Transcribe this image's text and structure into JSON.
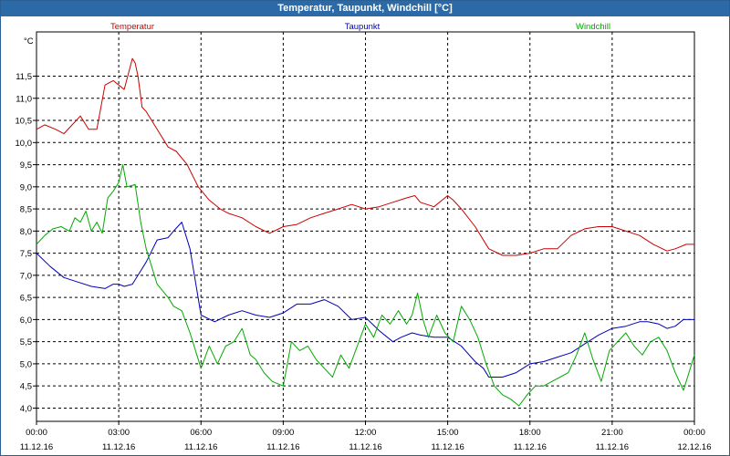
{
  "window": {
    "title": "Temperatur, Taupunkt, Windchill [°C]"
  },
  "chart_data": {
    "type": "line",
    "title": "Temperatur, Taupunkt, Windchill [°C]",
    "ylabel": "°C",
    "xlabel": "",
    "ylim": [
      3.7,
      12.5
    ],
    "xlim": [
      0,
      24
    ],
    "y_ticks": [
      4.0,
      4.5,
      5.0,
      5.5,
      6.0,
      6.5,
      7.0,
      7.5,
      8.0,
      8.5,
      9.0,
      9.5,
      10.0,
      10.5,
      11.0,
      11.5
    ],
    "y_tick_labels": [
      "4,0",
      "4,5",
      "5,0",
      "5,5",
      "6,0",
      "6,5",
      "7,0",
      "7,5",
      "8,0",
      "8,5",
      "9,0",
      "9,5",
      "10,0",
      "10,5",
      "11,0",
      "11,5"
    ],
    "x_ticks": [
      {
        "t": 0,
        "time": "00:00",
        "date": "11.12.16"
      },
      {
        "t": 3,
        "time": "03:00",
        "date": "11.12.16"
      },
      {
        "t": 6,
        "time": "06:00",
        "date": "11.12.16"
      },
      {
        "t": 9,
        "time": "09:00",
        "date": "11.12.16"
      },
      {
        "t": 12,
        "time": "12:00",
        "date": "11.12.16"
      },
      {
        "t": 15,
        "time": "15:00",
        "date": "11.12.16"
      },
      {
        "t": 18,
        "time": "18:00",
        "date": "11.12.16"
      },
      {
        "t": 21,
        "time": "21:00",
        "date": "11.12.16"
      },
      {
        "t": 24,
        "time": "00:00",
        "date": "12.12.16"
      }
    ],
    "grid": true,
    "series": [
      {
        "name": "Temperatur",
        "color": "#cc0000",
        "x": [
          0,
          0.3,
          0.7,
          1.0,
          1.3,
          1.6,
          1.9,
          2.2,
          2.5,
          2.8,
          3.0,
          3.2,
          3.5,
          3.6,
          3.7,
          3.85,
          4.0,
          4.4,
          4.8,
          5.1,
          5.5,
          5.9,
          6.3,
          6.7,
          7.0,
          7.5,
          8.0,
          8.5,
          9.0,
          9.5,
          10.0,
          10.5,
          11.0,
          11.5,
          12.0,
          12.5,
          13.0,
          13.5,
          13.8,
          14.0,
          14.5,
          15.0,
          15.2,
          15.5,
          16.0,
          16.5,
          17.0,
          17.5,
          18.0,
          18.5,
          19.0,
          19.5,
          20.0,
          20.5,
          21.0,
          21.5,
          22.0,
          22.5,
          23.0,
          23.3,
          23.7,
          24.0
        ],
        "values": [
          10.3,
          10.4,
          10.3,
          10.2,
          10.4,
          10.6,
          10.3,
          10.3,
          11.3,
          11.4,
          11.3,
          11.2,
          11.9,
          11.8,
          11.5,
          10.8,
          10.7,
          10.3,
          9.9,
          9.8,
          9.5,
          9.0,
          8.7,
          8.5,
          8.4,
          8.3,
          8.1,
          7.95,
          8.1,
          8.15,
          8.3,
          8.4,
          8.5,
          8.6,
          8.5,
          8.55,
          8.65,
          8.75,
          8.8,
          8.65,
          8.55,
          8.8,
          8.7,
          8.5,
          8.1,
          7.6,
          7.45,
          7.45,
          7.5,
          7.6,
          7.6,
          7.9,
          8.05,
          8.1,
          8.1,
          8.0,
          7.9,
          7.7,
          7.55,
          7.6,
          7.7,
          7.7
        ]
      },
      {
        "name": "Taupunkt",
        "color": "#0000bb",
        "x": [
          0,
          0.5,
          1.0,
          1.5,
          2.0,
          2.5,
          2.8,
          3.0,
          3.2,
          3.5,
          3.8,
          4.0,
          4.4,
          4.8,
          5.0,
          5.3,
          5.6,
          6.0,
          6.5,
          7.0,
          7.5,
          8.0,
          8.5,
          9.0,
          9.5,
          10.0,
          10.5,
          11.0,
          11.5,
          12.0,
          12.5,
          13.0,
          13.3,
          13.7,
          14.0,
          14.5,
          15.0,
          15.5,
          16.0,
          16.3,
          16.5,
          17.0,
          17.5,
          18.0,
          18.5,
          19.0,
          19.5,
          20.0,
          20.5,
          21.0,
          21.5,
          22.0,
          22.3,
          22.7,
          23.0,
          23.3,
          23.6,
          24.0
        ],
        "values": [
          7.5,
          7.2,
          6.95,
          6.85,
          6.75,
          6.7,
          6.8,
          6.8,
          6.75,
          6.8,
          7.1,
          7.3,
          7.8,
          7.85,
          8.0,
          8.2,
          7.6,
          6.1,
          5.95,
          6.1,
          6.2,
          6.1,
          6.05,
          6.15,
          6.35,
          6.35,
          6.45,
          6.3,
          6.0,
          6.05,
          5.75,
          5.5,
          5.6,
          5.7,
          5.65,
          5.6,
          5.6,
          5.4,
          5.05,
          4.9,
          4.7,
          4.7,
          4.8,
          5.0,
          5.05,
          5.15,
          5.25,
          5.45,
          5.65,
          5.8,
          5.85,
          5.95,
          5.95,
          5.9,
          5.8,
          5.85,
          6.0,
          6.0
        ]
      },
      {
        "name": "Windchill",
        "color": "#00aa00",
        "x": [
          0,
          0.3,
          0.6,
          0.9,
          1.2,
          1.4,
          1.6,
          1.8,
          2.0,
          2.2,
          2.4,
          2.6,
          2.8,
          3.0,
          3.15,
          3.3,
          3.6,
          3.8,
          4.0,
          4.4,
          4.8,
          5.0,
          5.3,
          5.6,
          6.0,
          6.3,
          6.6,
          6.9,
          7.2,
          7.5,
          7.8,
          8.0,
          8.3,
          8.6,
          9.0,
          9.3,
          9.6,
          9.9,
          10.2,
          10.5,
          10.8,
          11.1,
          11.4,
          11.7,
          12.0,
          12.3,
          12.6,
          12.9,
          13.2,
          13.5,
          13.7,
          13.9,
          14.1,
          14.3,
          14.6,
          14.9,
          15.2,
          15.5,
          15.8,
          16.1,
          16.4,
          16.7,
          17.0,
          17.3,
          17.6,
          17.9,
          18.2,
          18.5,
          18.8,
          19.1,
          19.4,
          19.7,
          20.0,
          20.3,
          20.6,
          20.9,
          21.2,
          21.5,
          21.8,
          22.1,
          22.4,
          22.7,
          23.0,
          23.3,
          23.6,
          23.85,
          24.0
        ],
        "values": [
          7.7,
          7.9,
          8.05,
          8.1,
          8.0,
          8.3,
          8.2,
          8.45,
          8.0,
          8.2,
          7.95,
          8.75,
          8.9,
          9.1,
          9.5,
          9.0,
          9.05,
          8.2,
          7.6,
          6.8,
          6.5,
          6.3,
          6.2,
          5.7,
          4.9,
          5.4,
          5.0,
          5.4,
          5.5,
          5.8,
          5.2,
          5.1,
          4.8,
          4.6,
          4.5,
          5.5,
          5.3,
          5.4,
          5.1,
          4.9,
          4.7,
          5.2,
          4.9,
          5.4,
          5.9,
          5.6,
          6.1,
          5.9,
          6.2,
          5.9,
          6.1,
          6.6,
          6.0,
          5.6,
          6.1,
          5.7,
          5.5,
          6.3,
          6.0,
          5.6,
          5.0,
          4.5,
          4.3,
          4.2,
          4.05,
          4.3,
          4.5,
          4.5,
          4.6,
          4.7,
          4.8,
          5.2,
          5.7,
          5.1,
          4.6,
          5.3,
          5.5,
          5.7,
          5.4,
          5.2,
          5.5,
          5.6,
          5.3,
          4.8,
          4.4,
          4.9,
          5.2
        ]
      }
    ]
  }
}
